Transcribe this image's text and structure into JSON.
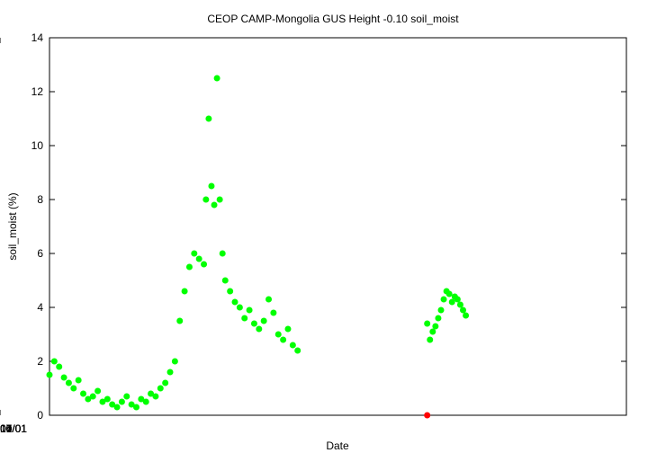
{
  "chart_data": {
    "type": "scatter",
    "title": "CEOP CAMP-Mongolia GUS Height -0.10 soil_moist",
    "xlabel": "Date",
    "ylabel": "soil_moist (%)",
    "xlim": [
      "2002-10-01",
      "2005-01-15"
    ],
    "ylim": [
      0,
      14
    ],
    "x_ticks": [
      "2002/10/01",
      "2003/01/01",
      "2003/04/01",
      "2003/07/01",
      "2003/10/01",
      "2004/01/01",
      "2004/04/01",
      "2004/07/01",
      "2004/10/01"
    ],
    "x_tick_labels": [
      "2002/10/01",
      "2003/01/01",
      "2003/04/01",
      "2003/07/01",
      "2003/10/01",
      "2004/01/01",
      "2004/04/01",
      "2004/07/01",
      "2004/10/01"
    ],
    "y_ticks": [
      0,
      2,
      4,
      6,
      8,
      10,
      12,
      14
    ],
    "y_tick_labels": [
      "0",
      "2",
      "4",
      "6",
      "8",
      "10",
      "12",
      "14"
    ],
    "grid": false,
    "series": [
      {
        "color": "#00ff00",
        "x": [
          "2002-10-01",
          "2002-10-08",
          "2002-10-15",
          "2002-10-22",
          "2002-10-29",
          "2002-11-05",
          "2002-11-12",
          "2002-11-19",
          "2002-11-26",
          "2002-12-03",
          "2002-12-10",
          "2002-12-17",
          "2002-12-24",
          "2002-12-31",
          "2003-01-07",
          "2003-01-14",
          "2003-01-21",
          "2003-01-28",
          "2003-02-04",
          "2003-02-11",
          "2003-02-18",
          "2003-02-25",
          "2003-03-04",
          "2003-03-11",
          "2003-03-18",
          "2003-03-25",
          "2003-04-01",
          "2003-04-08",
          "2003-04-15",
          "2003-04-22",
          "2003-04-29",
          "2003-05-06",
          "2003-05-13",
          "2003-05-16",
          "2003-05-20",
          "2003-05-24",
          "2003-05-28",
          "2003-06-01",
          "2003-06-05",
          "2003-06-09",
          "2003-06-13",
          "2003-06-20",
          "2003-06-27",
          "2003-07-04",
          "2003-07-11",
          "2003-07-18",
          "2003-07-25",
          "2003-08-01",
          "2003-08-08",
          "2003-08-15",
          "2003-08-22",
          "2003-08-29",
          "2003-09-05",
          "2003-09-12",
          "2003-09-19",
          "2003-09-26"
        ],
        "y": [
          1.5,
          2.0,
          1.8,
          1.4,
          1.2,
          1.0,
          1.3,
          0.8,
          0.6,
          0.7,
          0.9,
          0.5,
          0.6,
          0.4,
          0.3,
          0.5,
          0.7,
          0.4,
          0.3,
          0.6,
          0.5,
          0.8,
          0.7,
          1.0,
          1.2,
          1.6,
          2.0,
          3.5,
          4.6,
          5.5,
          6.0,
          5.8,
          5.6,
          8.0,
          11.0,
          8.5,
          7.8,
          12.5,
          8.0,
          6.0,
          5.0,
          4.6,
          4.2,
          4.0,
          3.6,
          3.9,
          3.4,
          3.2,
          3.5,
          4.3,
          3.8,
          3.0,
          2.8,
          3.2,
          2.6,
          2.4
        ]
      },
      {
        "color": "#00ff00",
        "x": [
          "2004-04-01",
          "2004-04-05",
          "2004-04-09",
          "2004-04-13",
          "2004-04-17",
          "2004-04-21",
          "2004-04-25",
          "2004-04-29",
          "2004-05-03",
          "2004-05-07",
          "2004-05-11",
          "2004-05-15",
          "2004-05-19",
          "2004-05-23",
          "2004-05-27"
        ],
        "y": [
          3.4,
          2.8,
          3.1,
          3.3,
          3.6,
          3.9,
          4.3,
          4.6,
          4.5,
          4.2,
          4.4,
          4.3,
          4.1,
          3.9,
          3.7
        ]
      },
      {
        "color": "#ff0000",
        "x": [
          "2004-04-01"
        ],
        "y": [
          0.0
        ]
      }
    ]
  }
}
